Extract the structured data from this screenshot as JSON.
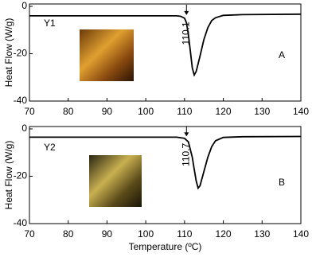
{
  "chart_data": [
    {
      "type": "line",
      "y_label": "Heat Flow (W/g)",
      "annotations": [
        "Y1",
        "A",
        "110.1"
      ],
      "x": [
        70,
        100,
        108,
        109,
        110,
        110.5,
        111,
        111.5,
        112,
        112.5,
        113,
        114,
        115,
        116,
        117,
        118,
        120,
        125,
        140
      ],
      "series": [
        {
          "color": "#000000",
          "values": [
            -4,
            -4,
            -4,
            -4.2,
            -5,
            -7,
            -12,
            -19,
            -26,
            -29,
            -27.5,
            -21,
            -14,
            -9,
            -6,
            -4.8,
            -3.8,
            -3.5,
            -3.3
          ]
        }
      ],
      "xlim": [
        70,
        140
      ],
      "xticks": [
        70,
        80,
        90,
        100,
        110,
        120,
        130,
        140
      ],
      "ylim": [
        -40,
        1
      ],
      "yticks": [
        -40,
        -20,
        0
      ]
    },
    {
      "type": "line",
      "y_label": "Heat Flow (W/g)",
      "x_label": "Temperature (ºC)",
      "annotations": [
        "Y2",
        "B",
        "110.7"
      ],
      "x": [
        70,
        100,
        108,
        110,
        111,
        112,
        112.5,
        113,
        113.5,
        114,
        115,
        116,
        117,
        118,
        120,
        125,
        140
      ],
      "series": [
        {
          "color": "#000000",
          "values": [
            -3.5,
            -3.5,
            -3.5,
            -4,
            -5.5,
            -12,
            -17,
            -22,
            -25,
            -24,
            -18,
            -12,
            -7.5,
            -5,
            -3.6,
            -3.3,
            -3.2
          ]
        }
      ],
      "xlim": [
        70,
        140
      ],
      "xticks": [
        70,
        80,
        90,
        100,
        110,
        120,
        130,
        140
      ],
      "ylim": [
        -40,
        1
      ],
      "yticks": [
        -40,
        -20,
        0
      ]
    }
  ]
}
